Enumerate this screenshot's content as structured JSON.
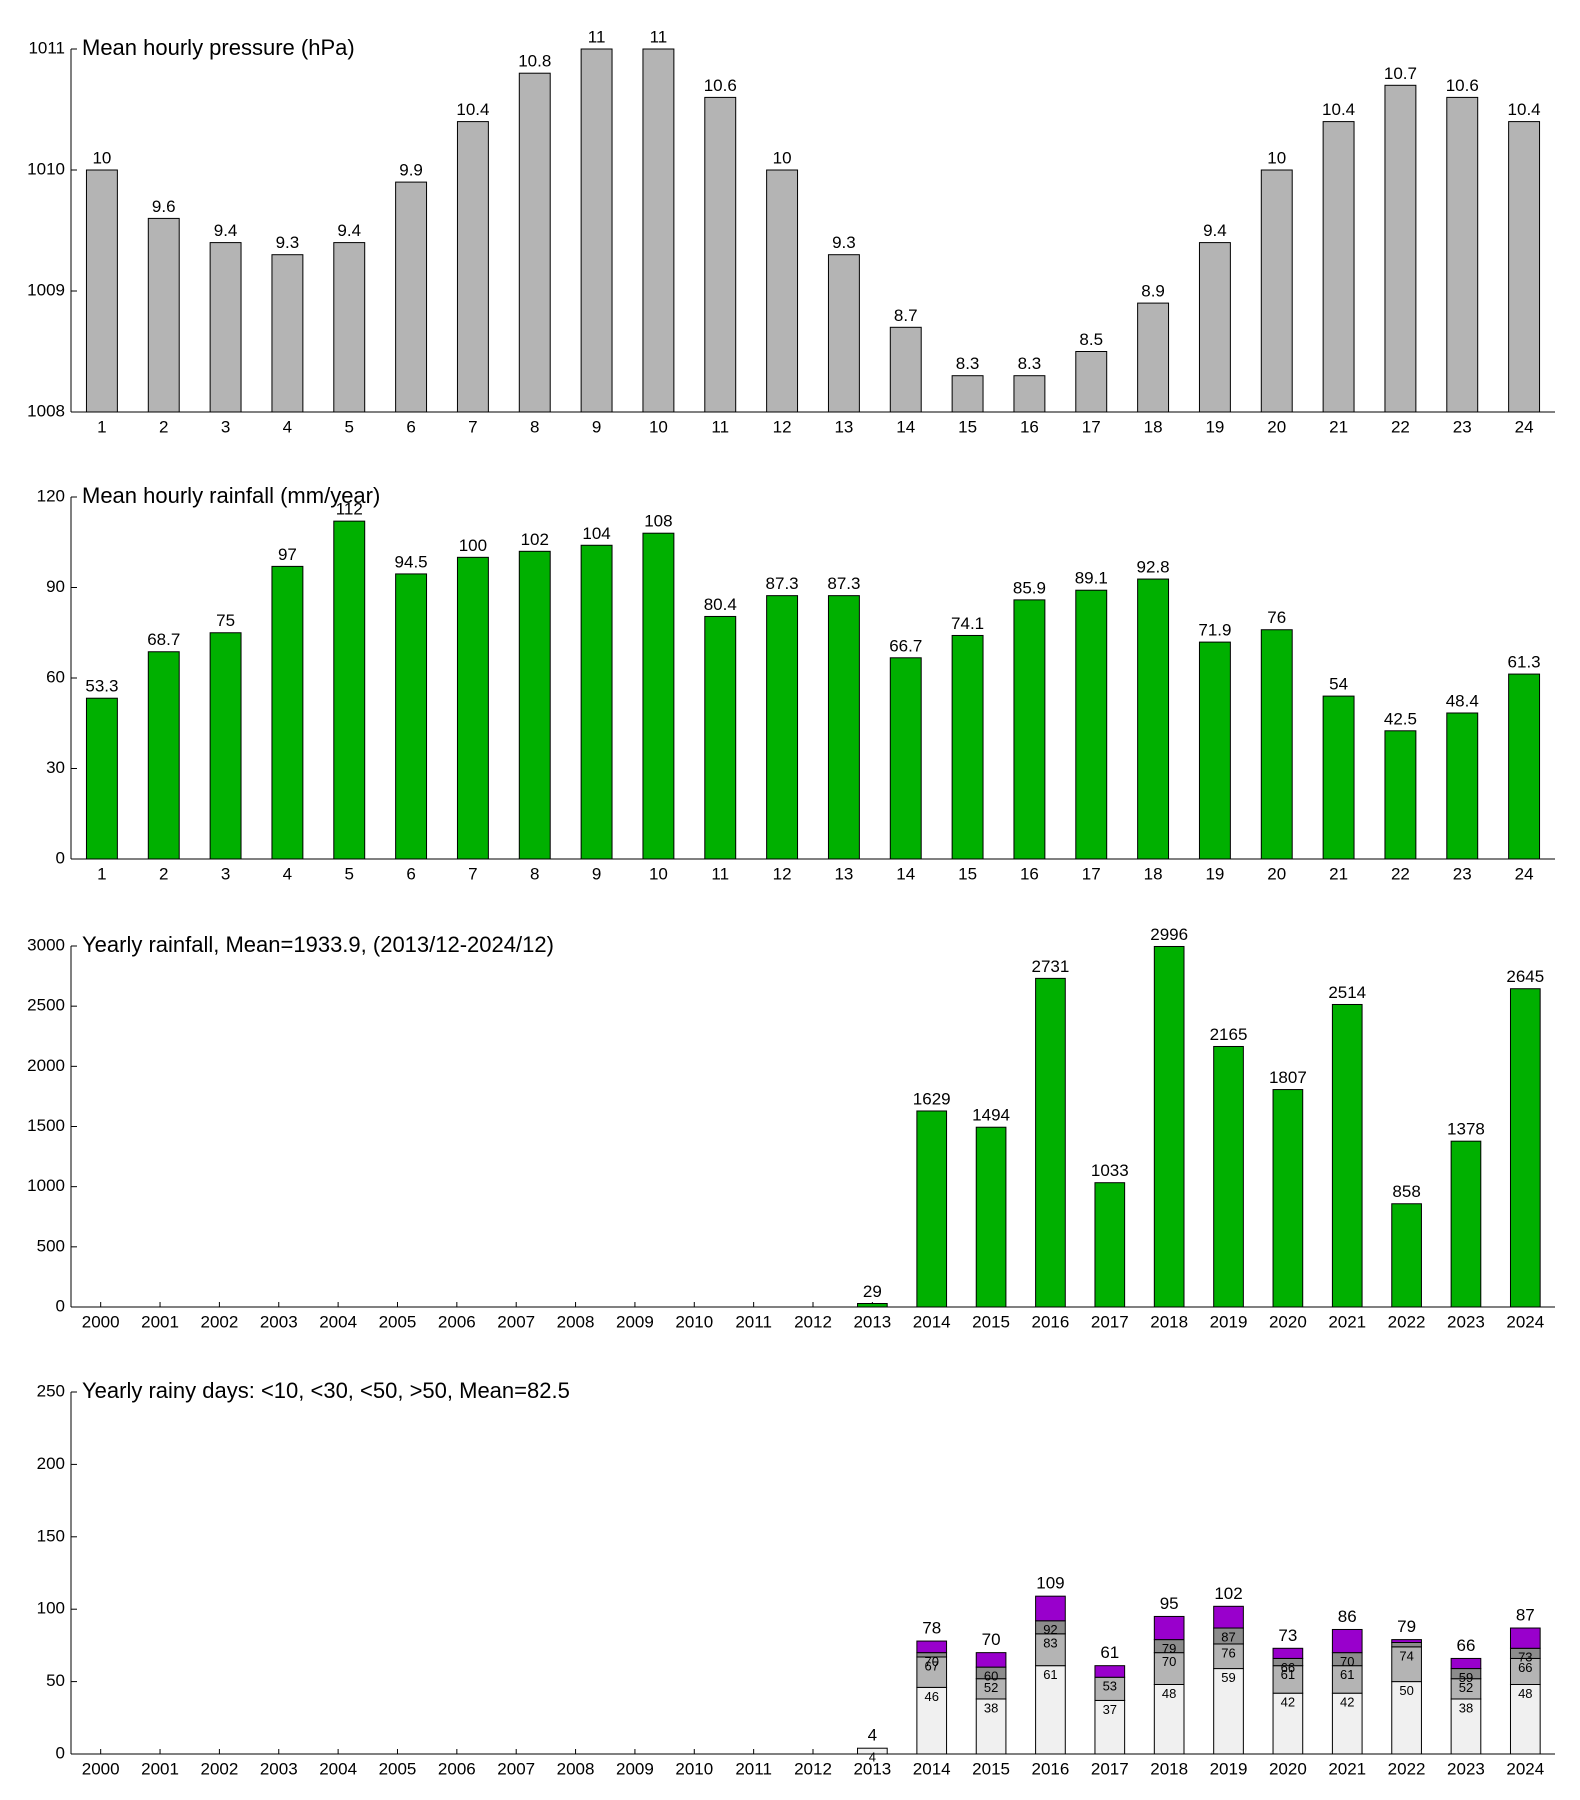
{
  "chart_data": [
    {
      "type": "bar",
      "title": "Mean hourly pressure (hPa)",
      "color": "#b4b4b4",
      "categories": [
        "1",
        "2",
        "3",
        "4",
        "5",
        "6",
        "7",
        "8",
        "9",
        "10",
        "11",
        "12",
        "13",
        "14",
        "15",
        "16",
        "17",
        "18",
        "19",
        "20",
        "21",
        "22",
        "23",
        "24"
      ],
      "values": [
        1010,
        1009.6,
        1009.4,
        1009.3,
        1009.4,
        1009.9,
        1010.4,
        1010.8,
        1011,
        1011,
        1010.6,
        1010,
        1009.3,
        1008.7,
        1008.3,
        1008.3,
        1008.5,
        1008.9,
        1009.4,
        1010,
        1010.4,
        1010.7,
        1010.6,
        1010.4
      ],
      "value_labels": [
        "10",
        "9.6",
        "9.4",
        "9.3",
        "9.4",
        "9.9",
        "10.4",
        "10.8",
        "11",
        "11",
        "10.6",
        "10",
        "9.3",
        "8.7",
        "8.3",
        "8.3",
        "8.5",
        "8.9",
        "9.4",
        "10",
        "10.4",
        "10.7",
        "10.6",
        "10.4"
      ],
      "ylim": [
        1008,
        1011
      ],
      "yticks": [
        1008,
        1009,
        1010,
        1011
      ]
    },
    {
      "type": "bar",
      "title": "Mean hourly rainfall (mm/year)",
      "color": "#00b000",
      "categories": [
        "1",
        "2",
        "3",
        "4",
        "5",
        "6",
        "7",
        "8",
        "9",
        "10",
        "11",
        "12",
        "13",
        "14",
        "15",
        "16",
        "17",
        "18",
        "19",
        "20",
        "21",
        "22",
        "23",
        "24"
      ],
      "values": [
        53.3,
        68.7,
        75,
        97,
        112,
        94.5,
        100,
        102,
        104,
        108,
        80.4,
        87.3,
        87.3,
        66.7,
        74.1,
        85.9,
        89.1,
        92.8,
        71.9,
        76,
        54,
        42.5,
        48.4,
        61.3
      ],
      "ylim": [
        0,
        120
      ],
      "yticks": [
        0,
        30,
        60,
        90,
        120
      ]
    },
    {
      "type": "bar",
      "title": "Yearly rainfall, Mean=1933.9, (2013/12-2024/12)",
      "color": "#00b000",
      "categories": [
        "2000",
        "2001",
        "2002",
        "2003",
        "2004",
        "2005",
        "2006",
        "2007",
        "2008",
        "2009",
        "2010",
        "2011",
        "2012",
        "2013",
        "2014",
        "2015",
        "2016",
        "2017",
        "2018",
        "2019",
        "2020",
        "2021",
        "2022",
        "2023",
        "2024"
      ],
      "values": [
        null,
        null,
        null,
        null,
        null,
        null,
        null,
        null,
        null,
        null,
        null,
        null,
        null,
        29,
        1629,
        1494,
        2731,
        1033,
        2996,
        2165,
        1807,
        2514,
        858,
        1378,
        2645
      ],
      "ylim": [
        0,
        3000
      ],
      "yticks": [
        0,
        500,
        1000,
        1500,
        2000,
        2500,
        3000
      ]
    },
    {
      "type": "stacked_bar",
      "title": "Yearly rainy days: <10, <30, <50, >50, Mean=82.5",
      "categories": [
        "2000",
        "2001",
        "2002",
        "2003",
        "2004",
        "2005",
        "2006",
        "2007",
        "2008",
        "2009",
        "2010",
        "2011",
        "2012",
        "2013",
        "2014",
        "2015",
        "2016",
        "2017",
        "2018",
        "2019",
        "2020",
        "2021",
        "2022",
        "2023",
        "2024"
      ],
      "series": [
        {
          "color": "#f0f0f0",
          "values": [
            null,
            null,
            null,
            null,
            null,
            null,
            null,
            null,
            null,
            null,
            null,
            null,
            null,
            4,
            46,
            38,
            61,
            37,
            48,
            59,
            42,
            42,
            50,
            38,
            48
          ]
        },
        {
          "color": "#b4b4b4",
          "values": [
            null,
            null,
            null,
            null,
            null,
            null,
            null,
            null,
            null,
            null,
            null,
            null,
            null,
            0,
            21,
            14,
            22,
            16,
            22,
            17,
            19,
            19,
            24,
            14,
            18
          ],
          "labels": [
            null,
            null,
            null,
            null,
            null,
            null,
            null,
            null,
            null,
            null,
            null,
            null,
            null,
            null,
            "67",
            "52",
            "83",
            "53",
            "70",
            "76",
            "61",
            "61",
            "74",
            "52",
            "66"
          ]
        },
        {
          "color": "#8c8c8c",
          "values": [
            null,
            null,
            null,
            null,
            null,
            null,
            null,
            null,
            null,
            null,
            null,
            null,
            null,
            0,
            3,
            8,
            9,
            0,
            9,
            11,
            5,
            9,
            3,
            7,
            7
          ],
          "labels": [
            null,
            null,
            null,
            null,
            null,
            null,
            null,
            null,
            null,
            null,
            null,
            null,
            null,
            null,
            "70",
            "60",
            "92",
            null,
            "79",
            "87",
            "66",
            "70",
            null,
            "59",
            "73"
          ]
        },
        {
          "color": "#9900cc",
          "values": [
            null,
            null,
            null,
            null,
            null,
            null,
            null,
            null,
            null,
            null,
            null,
            null,
            null,
            0,
            8,
            10,
            17,
            8,
            16,
            15,
            7,
            16,
            2,
            7,
            14
          ]
        }
      ],
      "total_labels": [
        null,
        null,
        null,
        null,
        null,
        null,
        null,
        null,
        null,
        null,
        null,
        null,
        null,
        "4",
        "78",
        "70",
        "109",
        "61",
        "95",
        "102",
        "73",
        "86",
        "79",
        "66",
        "87"
      ],
      "ylim": [
        0,
        250
      ],
      "yticks": [
        0,
        50,
        100,
        150,
        200,
        250
      ]
    }
  ]
}
